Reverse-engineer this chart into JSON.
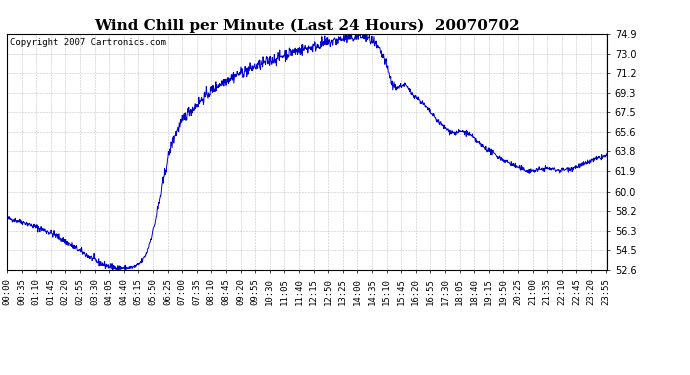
{
  "title": "Wind Chill per Minute (Last 24 Hours)  20070702",
  "copyright": "Copyright 2007 Cartronics.com",
  "line_color": "#0000cc",
  "background_color": "#ffffff",
  "plot_background": "#ffffff",
  "grid_color": "#aaaaaa",
  "ylim": [
    52.6,
    74.9
  ],
  "yticks": [
    52.6,
    54.5,
    56.3,
    58.2,
    60.0,
    61.9,
    63.8,
    65.6,
    67.5,
    69.3,
    71.2,
    73.0,
    74.9
  ],
  "title_fontsize": 11,
  "tick_fontsize": 6.5,
  "copyright_fontsize": 6.5
}
